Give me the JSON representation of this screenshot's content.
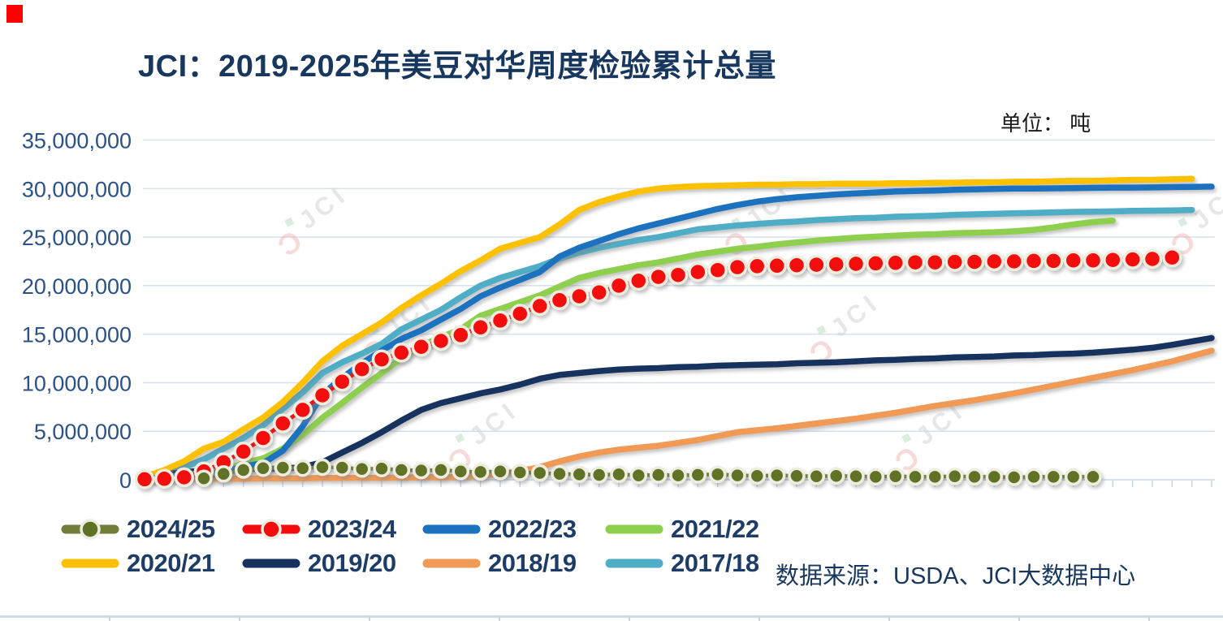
{
  "page": {
    "background": "#FFFFFF",
    "corner_marker_color": "#FF0000"
  },
  "header": {
    "title": "JCI：2019-2025年美豆对华周度检验累计总量"
  },
  "unit_label": "单位： 吨",
  "source_note": "数据来源：USDA、JCI大数据中心",
  "watermark": {
    "mark": "Ɔ",
    "text": "JCI"
  },
  "chart_data": {
    "type": "line",
    "title": "JCI：2019-2025年美豆对华周度检验累计总量",
    "unit": "吨",
    "values_unit": "million tons",
    "x_axis": {
      "kind": "marketing-year week index",
      "weeks": 55,
      "tick_labels_visible": false
    },
    "y_axis": {
      "min": 0,
      "max": 35000000,
      "tick_interval": 5000000,
      "tick_labels": [
        "0",
        "5,000,000",
        "10,000,000",
        "15,000,000",
        "20,000,000",
        "25,000,000",
        "30,000,000",
        "35,000,000"
      ],
      "tick_values_millions": [
        0,
        5,
        10,
        15,
        20,
        25,
        30,
        35
      ]
    },
    "grid": "horizontal",
    "legend_position": "bottom",
    "series": [
      {
        "name": "2024/25",
        "color": "#6F7E3A",
        "marker_color": "#5E7227",
        "style": "line+markers",
        "start_week": 4,
        "values": [
          0.15,
          0.6,
          1.0,
          1.2,
          1.25,
          1.2,
          1.3,
          1.25,
          1.1,
          1.15,
          1.0,
          0.95,
          1.0,
          0.85,
          0.8,
          0.85,
          0.75,
          0.7,
          0.6,
          0.55,
          0.5,
          0.55,
          0.45,
          0.5,
          0.45,
          0.5,
          0.55,
          0.45,
          0.4,
          0.45,
          0.4,
          0.35,
          0.4,
          0.35,
          0.3,
          0.35,
          0.3,
          0.3,
          0.35,
          0.3,
          0.3,
          0.25,
          0.3,
          0.3,
          0.3,
          0.3
        ]
      },
      {
        "name": "2023/24",
        "color": "#F40B0B",
        "marker_color": "#F40B0B",
        "style": "line+markers",
        "start_week": 1,
        "values": [
          0.05,
          0.1,
          0.25,
          0.85,
          1.8,
          2.9,
          4.3,
          5.8,
          7.2,
          8.7,
          10.1,
          11.4,
          12.4,
          13.1,
          13.7,
          14.3,
          14.9,
          15.7,
          16.4,
          17.1,
          17.9,
          18.5,
          18.9,
          19.3,
          20.0,
          20.5,
          20.9,
          21.1,
          21.4,
          21.6,
          21.9,
          22.0,
          22.05,
          22.1,
          22.15,
          22.2,
          22.25,
          22.3,
          22.35,
          22.4,
          22.4,
          22.45,
          22.45,
          22.5,
          22.5,
          22.55,
          22.55,
          22.6,
          22.6,
          22.65,
          22.7,
          22.75,
          22.9
        ]
      },
      {
        "name": "2022/23",
        "color": "#1B72BE",
        "style": "line",
        "start_week": 1,
        "values": [
          0.1,
          0.25,
          0.4,
          0.6,
          0.8,
          1.4,
          1.7,
          3.0,
          5.5,
          8.8,
          10.5,
          12.0,
          13.3,
          14.5,
          15.4,
          16.5,
          17.6,
          18.9,
          19.8,
          20.6,
          21.4,
          23.0,
          23.9,
          24.6,
          25.3,
          25.9,
          26.4,
          26.9,
          27.4,
          27.9,
          28.3,
          28.65,
          28.9,
          29.1,
          29.25,
          29.4,
          29.5,
          29.6,
          29.7,
          29.75,
          29.8,
          29.87,
          29.92,
          29.96,
          30.0,
          30.0,
          30.02,
          30.05,
          30.07,
          30.1,
          30.1,
          30.12,
          30.15,
          30.17,
          30.2
        ]
      },
      {
        "name": "2021/22",
        "color": "#8ED04E",
        "style": "line",
        "start_week": 1,
        "values": [
          0.1,
          0.25,
          0.45,
          0.7,
          1.0,
          1.7,
          2.2,
          3.2,
          4.6,
          6.4,
          7.9,
          9.5,
          11.0,
          12.5,
          13.8,
          14.7,
          15.5,
          16.9,
          17.6,
          18.3,
          19.0,
          19.9,
          20.8,
          21.3,
          21.7,
          22.1,
          22.4,
          22.8,
          23.2,
          23.5,
          23.8,
          24.0,
          24.25,
          24.45,
          24.65,
          24.8,
          24.95,
          25.05,
          25.15,
          25.25,
          25.3,
          25.4,
          25.45,
          25.5,
          25.6,
          25.75,
          26.0,
          26.3,
          26.55,
          26.7
        ]
      },
      {
        "name": "2020/21",
        "color": "#FEC101",
        "style": "line",
        "start_week": 1,
        "values": [
          0.3,
          1.0,
          1.9,
          3.2,
          3.9,
          5.2,
          6.4,
          8.0,
          10.0,
          12.2,
          13.8,
          15.0,
          16.2,
          17.7,
          19.0,
          20.2,
          21.5,
          22.6,
          23.8,
          24.4,
          25.0,
          26.3,
          27.8,
          28.6,
          29.2,
          29.7,
          30.0,
          30.15,
          30.25,
          30.3,
          30.35,
          30.4,
          30.4,
          30.45,
          30.45,
          30.5,
          30.5,
          30.5,
          30.55,
          30.55,
          30.6,
          30.6,
          30.65,
          30.65,
          30.7,
          30.7,
          30.75,
          30.8,
          30.8,
          30.85,
          30.9,
          30.9,
          30.95,
          31.0
        ]
      },
      {
        "name": "2019/20",
        "color": "#17325E",
        "style": "line",
        "start_week": 1,
        "values": [
          0.3,
          0.55,
          0.8,
          0.9,
          1.0,
          1.15,
          1.1,
          1.15,
          1.3,
          1.8,
          2.8,
          3.8,
          4.9,
          6.1,
          7.2,
          7.9,
          8.4,
          8.9,
          9.3,
          9.8,
          10.4,
          10.8,
          11.0,
          11.2,
          11.35,
          11.45,
          11.5,
          11.6,
          11.65,
          11.75,
          11.8,
          11.85,
          11.9,
          12.0,
          12.05,
          12.1,
          12.2,
          12.3,
          12.35,
          12.45,
          12.5,
          12.6,
          12.65,
          12.7,
          12.8,
          12.85,
          12.95,
          13.0,
          13.1,
          13.25,
          13.4,
          13.6,
          13.9,
          14.25,
          14.6
        ]
      },
      {
        "name": "2018/19",
        "color": "#F09A57",
        "style": "line",
        "start_week": 1,
        "values": [
          0.05,
          0.08,
          0.1,
          0.1,
          0.1,
          0.12,
          0.15,
          0.15,
          0.15,
          0.18,
          0.2,
          0.2,
          0.2,
          0.22,
          0.25,
          0.25,
          0.3,
          0.4,
          0.6,
          0.9,
          1.3,
          1.9,
          2.4,
          2.8,
          3.1,
          3.3,
          3.5,
          3.8,
          4.1,
          4.5,
          4.9,
          5.1,
          5.3,
          5.55,
          5.8,
          6.05,
          6.3,
          6.6,
          6.9,
          7.25,
          7.6,
          7.9,
          8.2,
          8.55,
          8.9,
          9.3,
          9.7,
          10.1,
          10.5,
          10.9,
          11.3,
          11.75,
          12.2,
          12.75,
          13.3
        ]
      },
      {
        "name": "2017/18",
        "color": "#4FADC6",
        "style": "line",
        "start_week": 1,
        "values": [
          0.2,
          0.6,
          1.3,
          2.1,
          3.2,
          4.3,
          5.6,
          7.3,
          9.0,
          11.0,
          12.1,
          13.0,
          14.0,
          15.5,
          16.5,
          17.5,
          18.8,
          20.0,
          20.8,
          21.4,
          22.0,
          22.8,
          23.4,
          23.9,
          24.3,
          24.7,
          25.0,
          25.4,
          25.8,
          26.0,
          26.2,
          26.35,
          26.5,
          26.6,
          26.75,
          26.85,
          26.95,
          27.0,
          27.1,
          27.15,
          27.2,
          27.3,
          27.35,
          27.4,
          27.45,
          27.5,
          27.55,
          27.6,
          27.62,
          27.65,
          27.7,
          27.72,
          27.75,
          27.8
        ]
      }
    ]
  }
}
